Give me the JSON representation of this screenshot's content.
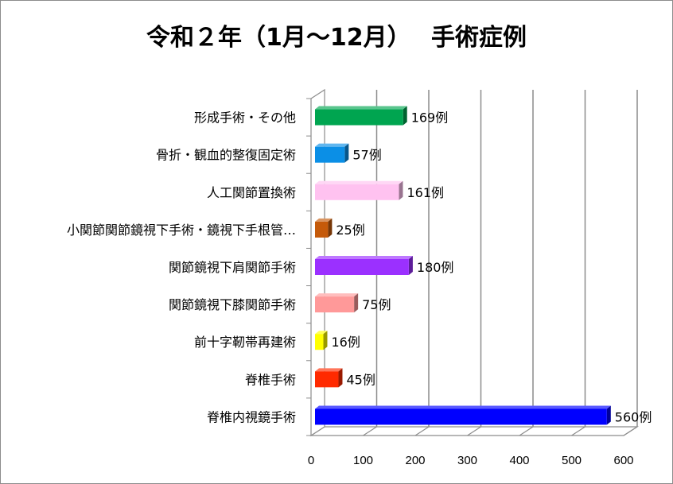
{
  "chart_data": {
    "type": "bar",
    "orientation": "horizontal",
    "style": "3d",
    "title": "令和２年（1月～12月）　 手術症例",
    "categories": [
      "形成手術・その他",
      "骨折・観血的整復固定術",
      "人工関節置換術",
      "小関節関節鏡視下手術・鏡視下手根管…",
      "関節鏡視下肩関節手術",
      "関節鏡視下膝関節手術",
      "前十字靭帯再建術",
      "脊椎手術",
      "脊椎内視鏡手術"
    ],
    "values": [
      169,
      57,
      161,
      25,
      180,
      75,
      16,
      45,
      560
    ],
    "data_labels": [
      "169例",
      "57例",
      "161例",
      "25例",
      "180例",
      "75例",
      "16例",
      "45例",
      "560例"
    ],
    "colors": [
      "#00a550",
      "#0b8fe6",
      "#ffc2f0",
      "#c55a0a",
      "#9b30ff",
      "#ff9999",
      "#ffff00",
      "#ff2a00",
      "#0000ff"
    ],
    "xlim": [
      0,
      600
    ],
    "xticks": [
      "0",
      "100",
      "200",
      "300",
      "400",
      "500",
      "600"
    ],
    "grid": true,
    "legend": "none"
  }
}
